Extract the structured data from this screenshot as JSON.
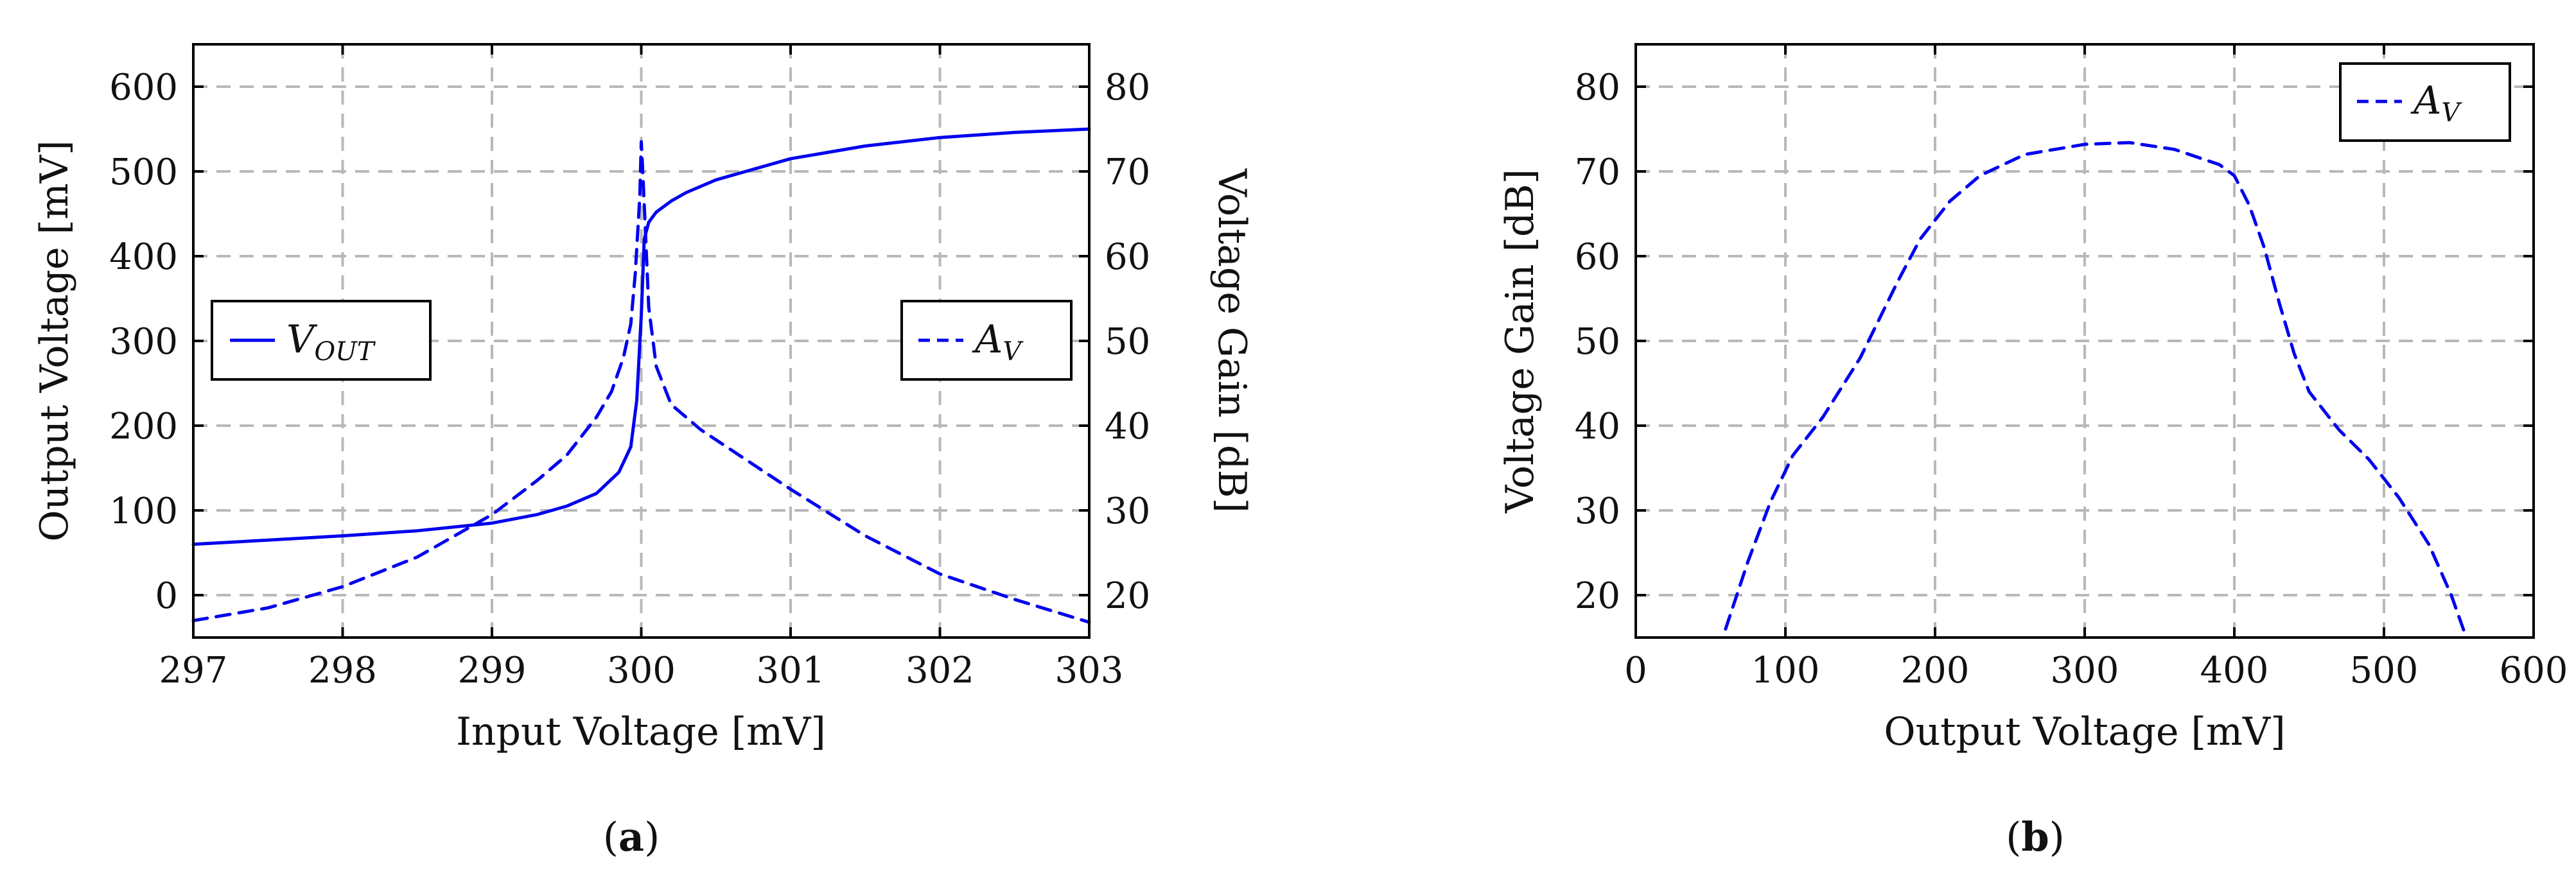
{
  "figure": {
    "caption_a": "a",
    "caption_b": "b"
  },
  "chart_data": [
    {
      "id": "a",
      "type": "line",
      "xlabel": "Input Voltage [mV]",
      "ylabel": "Output Voltage [mV]",
      "y2label": "Voltage Gain [dB]",
      "xlim": [
        297,
        303
      ],
      "ylim": [
        -50,
        650
      ],
      "y2lim": [
        15,
        85
      ],
      "xticks": [
        297,
        298,
        299,
        300,
        301,
        302,
        303
      ],
      "yticks": [
        0,
        100,
        200,
        300,
        400,
        500,
        600
      ],
      "y2ticks": [
        20,
        30,
        40,
        50,
        60,
        70,
        80
      ],
      "grid": true,
      "series": [
        {
          "name": "V",
          "name_sub": "OUT",
          "axis": "left",
          "style": "solid",
          "color": "#0000ee",
          "legend_position": "center-left",
          "x": [
            297,
            297.5,
            298,
            298.5,
            299,
            299.3,
            299.5,
            299.7,
            299.85,
            299.93,
            299.97,
            300,
            300.02,
            300.05,
            300.1,
            300.2,
            300.3,
            300.5,
            301,
            301.5,
            302,
            302.5,
            303
          ],
          "y": [
            60,
            65,
            70,
            76,
            85,
            95,
            105,
            120,
            145,
            175,
            230,
            330,
            420,
            440,
            452,
            465,
            475,
            490,
            515,
            530,
            540,
            546,
            550
          ]
        },
        {
          "name": "A",
          "name_sub": "V",
          "axis": "right",
          "style": "dashed",
          "color": "#0000ee",
          "legend_position": "center-right",
          "x": [
            297,
            297.5,
            298,
            298.5,
            299,
            299.3,
            299.5,
            299.7,
            299.8,
            299.88,
            299.93,
            299.96,
            299.99,
            300,
            300.01,
            300.03,
            300.05,
            300.1,
            300.2,
            300.4,
            300.7,
            301,
            301.5,
            302,
            302.5,
            303
          ],
          "y": [
            17,
            18.5,
            21,
            24.5,
            29.5,
            33.5,
            36.5,
            41,
            44,
            48,
            52,
            58,
            67,
            73.5,
            70,
            62,
            54,
            47,
            42.5,
            39.5,
            36,
            32.5,
            27,
            22.5,
            19.5,
            16.8
          ]
        }
      ]
    },
    {
      "id": "b",
      "type": "line",
      "xlabel": "Output Voltage [mV]",
      "ylabel": "Voltage Gain [dB]",
      "xlim": [
        0,
        600
      ],
      "ylim": [
        15,
        85
      ],
      "xticks": [
        0,
        100,
        200,
        300,
        400,
        500,
        600
      ],
      "yticks": [
        20,
        30,
        40,
        50,
        60,
        70,
        80
      ],
      "grid": true,
      "series": [
        {
          "name": "A",
          "name_sub": "V",
          "style": "dashed",
          "color": "#0000ee",
          "legend_position": "top-right",
          "x": [
            60,
            75,
            90,
            105,
            125,
            150,
            175,
            190,
            210,
            230,
            260,
            300,
            330,
            360,
            390,
            400,
            410,
            420,
            430,
            440,
            450,
            470,
            490,
            510,
            530,
            545,
            555
          ],
          "y": [
            16,
            24,
            31,
            36.5,
            41,
            48,
            57,
            62,
            66.5,
            69.5,
            72,
            73.2,
            73.4,
            72.6,
            70.8,
            69.5,
            66,
            61,
            54.5,
            48.5,
            44,
            39.5,
            36,
            31.5,
            26,
            20,
            15
          ]
        }
      ]
    }
  ]
}
